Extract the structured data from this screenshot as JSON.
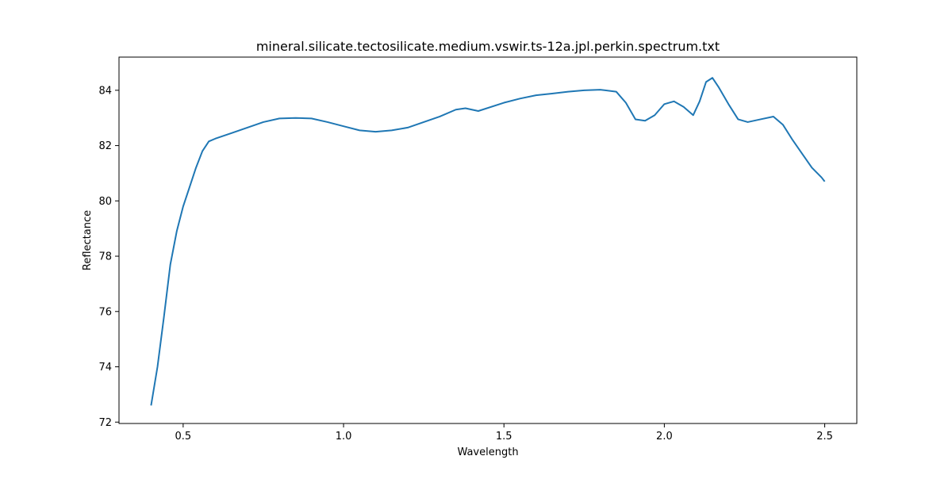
{
  "chart_data": {
    "type": "line",
    "title": "mineral.silicate.tectosilicate.medium.vswir.ts-12a.jpl.perkin.spectrum.txt",
    "xlabel": "Wavelength",
    "ylabel": "Reflectance",
    "xlim": [
      0.3,
      2.6
    ],
    "ylim": [
      71.95,
      85.2
    ],
    "xticks": [
      0.5,
      1.0,
      1.5,
      2.0,
      2.5
    ],
    "xtick_labels": [
      "0.5",
      "1.0",
      "1.5",
      "2.0",
      "2.5"
    ],
    "yticks": [
      72,
      74,
      76,
      78,
      80,
      82,
      84
    ],
    "ytick_labels": [
      "72",
      "74",
      "76",
      "78",
      "80",
      "82",
      "84"
    ],
    "grid": false,
    "line_color": "#1f77b4",
    "series": [
      {
        "x": [
          0.4,
          0.42,
          0.44,
          0.46,
          0.48,
          0.5,
          0.52,
          0.54,
          0.56,
          0.58,
          0.6,
          0.65,
          0.7,
          0.75,
          0.8,
          0.85,
          0.9,
          0.95,
          1.0,
          1.05,
          1.1,
          1.15,
          1.2,
          1.25,
          1.3,
          1.35,
          1.38,
          1.42,
          1.5,
          1.55,
          1.6,
          1.65,
          1.7,
          1.75,
          1.8,
          1.85,
          1.88,
          1.91,
          1.94,
          1.97,
          2.0,
          2.03,
          2.06,
          2.09,
          2.11,
          2.13,
          2.15,
          2.17,
          2.2,
          2.23,
          2.26,
          2.3,
          2.34,
          2.37,
          2.4,
          2.43,
          2.46,
          2.49,
          2.5
        ],
        "y": [
          72.6,
          74.0,
          75.8,
          77.7,
          78.9,
          79.8,
          80.5,
          81.2,
          81.8,
          82.15,
          82.25,
          82.45,
          82.65,
          82.85,
          82.98,
          83.0,
          82.98,
          82.85,
          82.7,
          82.55,
          82.5,
          82.55,
          82.65,
          82.85,
          83.05,
          83.3,
          83.35,
          83.25,
          83.55,
          83.7,
          83.82,
          83.88,
          83.95,
          84.0,
          84.02,
          83.95,
          83.55,
          82.95,
          82.9,
          83.1,
          83.5,
          83.6,
          83.4,
          83.1,
          83.6,
          84.3,
          84.45,
          84.1,
          83.5,
          82.95,
          82.85,
          82.95,
          83.05,
          82.75,
          82.2,
          81.7,
          81.2,
          80.85,
          80.7
        ]
      }
    ]
  }
}
